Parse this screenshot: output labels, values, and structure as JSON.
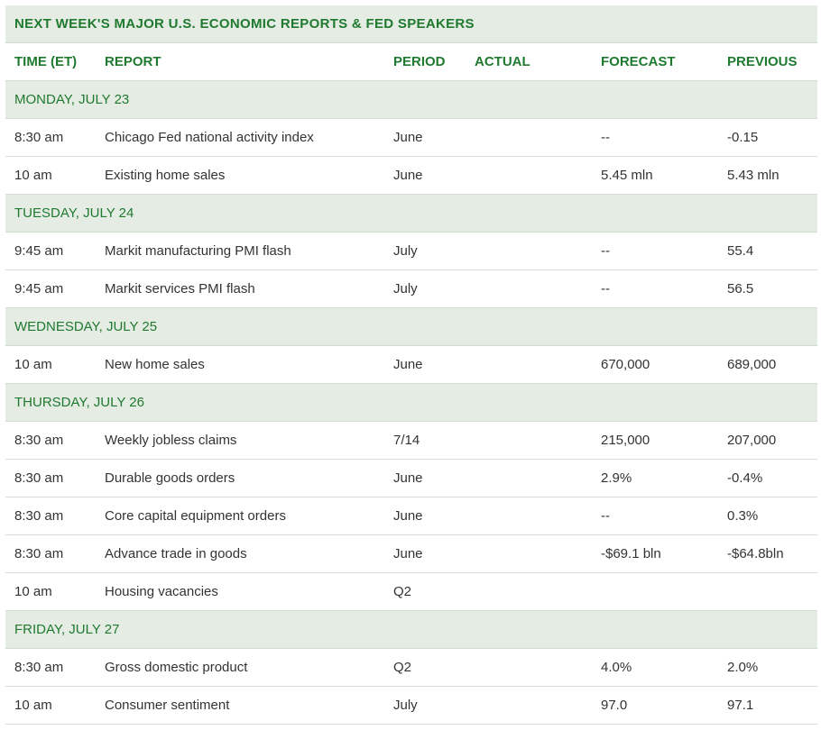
{
  "colors": {
    "accent_text": "#1f7a2f",
    "header_bg": "#e4ece4",
    "row_bg": "#ffffff",
    "body_text": "#333333",
    "border": "#d5ded5"
  },
  "title": "NEXT WEEK'S MAJOR U.S. ECONOMIC REPORTS & FED SPEAKERS",
  "columns": {
    "time": "TIME (ET)",
    "report": "REPORT",
    "period": "PERIOD",
    "actual": "ACTUAL",
    "forecast": "FORECAST",
    "previous": "PREVIOUS"
  },
  "days": [
    {
      "label": "MONDAY, JULY 23",
      "rows": [
        {
          "time": "8:30 am",
          "report": "Chicago Fed national activity index",
          "period": "June",
          "actual": "",
          "forecast": "--",
          "previous": "-0.15"
        },
        {
          "time": "10 am",
          "report": "Existing home sales",
          "period": "June",
          "actual": "",
          "forecast": "5.45 mln",
          "previous": "5.43 mln"
        }
      ]
    },
    {
      "label": "TUESDAY, JULY 24",
      "rows": [
        {
          "time": "9:45 am",
          "report": "Markit manufacturing PMI flash",
          "period": "July",
          "actual": "",
          "forecast": "--",
          "previous": "55.4"
        },
        {
          "time": "9:45 am",
          "report": "Markit services PMI flash",
          "period": "July",
          "actual": "",
          "forecast": "--",
          "previous": "56.5"
        }
      ]
    },
    {
      "label": "WEDNESDAY, JULY 25",
      "rows": [
        {
          "time": "10 am",
          "report": "New home sales",
          "period": "June",
          "actual": "",
          "forecast": "670,000",
          "previous": "689,000"
        }
      ]
    },
    {
      "label": "THURSDAY, JULY 26",
      "rows": [
        {
          "time": "8:30 am",
          "report": "Weekly jobless claims",
          "period": "7/14",
          "actual": "",
          "forecast": "215,000",
          "previous": "207,000"
        },
        {
          "time": "8:30 am",
          "report": "Durable goods orders",
          "period": "June",
          "actual": "",
          "forecast": "2.9%",
          "previous": "-0.4%"
        },
        {
          "time": "8:30 am",
          "report": "Core capital equipment orders",
          "period": "June",
          "actual": "",
          "forecast": "--",
          "previous": "0.3%"
        },
        {
          "time": "8:30 am",
          "report": "Advance trade in goods",
          "period": "June",
          "actual": "",
          "forecast": "-$69.1 bln",
          "previous": "-$64.8bln"
        },
        {
          "time": "10 am",
          "report": "Housing vacancies",
          "period": "Q2",
          "actual": "",
          "forecast": "",
          "previous": ""
        }
      ]
    },
    {
      "label": "FRIDAY, JULY 27",
      "rows": [
        {
          "time": "8:30 am",
          "report": "Gross domestic product",
          "period": "Q2",
          "actual": "",
          "forecast": "4.0%",
          "previous": "2.0%"
        },
        {
          "time": "10 am",
          "report": "Consumer sentiment",
          "period": "July",
          "actual": "",
          "forecast": "97.0",
          "previous": "97.1"
        }
      ]
    }
  ]
}
